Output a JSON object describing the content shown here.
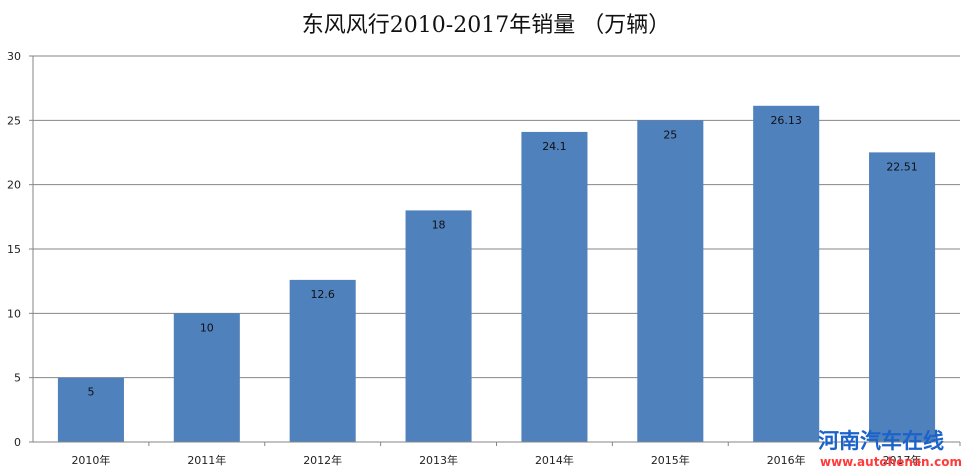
{
  "chart_data": {
    "type": "bar",
    "title": "东风风行2010-2017年销量 （万辆）",
    "categories": [
      "2010年",
      "2011年",
      "2012年",
      "2013年",
      "2014年",
      "2015年",
      "2016年",
      "2017年"
    ],
    "values": [
      5,
      10,
      12.6,
      18,
      24.1,
      25,
      26.13,
      22.51
    ],
    "data_labels": [
      "5",
      "10",
      "12.6",
      "18",
      "24.1",
      "25",
      "26.13",
      "22.51"
    ],
    "ylim": [
      0,
      30
    ],
    "yticks": [
      "0",
      "5",
      "10",
      "15",
      "20",
      "25",
      "30"
    ],
    "grid": true,
    "bar_color": "#4f81bd",
    "grid_color": "#868686",
    "xlabel": "",
    "ylabel": ""
  },
  "watermark": {
    "line1": "河南汽车在线",
    "line2": "www.autohenan.com"
  }
}
